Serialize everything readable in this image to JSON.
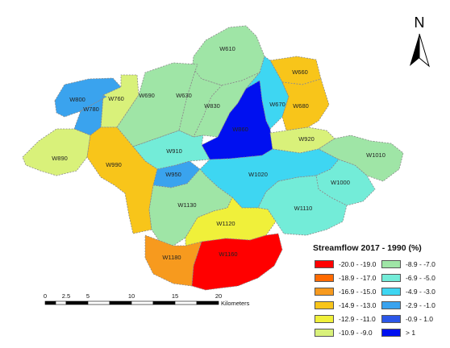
{
  "colors": {
    "c1": "#ff0000",
    "c2": "#ff6a00",
    "c3": "#f79a1e",
    "c4": "#f8c51a",
    "c5": "#f0f03a",
    "c6": "#d9f17a",
    "c7": "#9fe5a6",
    "c8": "#73ecd8",
    "c9": "#3ed6f2",
    "c10": "#3aa3ee",
    "c11": "#2b56e8",
    "c12": "#0010f0"
  },
  "watersheds": [
    {
      "label": "W610",
      "class": 7
    },
    {
      "label": "W660",
      "class": 4
    },
    {
      "label": "W800",
      "class": 10
    },
    {
      "label": "W760",
      "class": 6
    },
    {
      "label": "W690",
      "class": 7
    },
    {
      "label": "W630",
      "class": 7
    },
    {
      "label": "W780",
      "class": 10
    },
    {
      "label": "W830",
      "class": 7
    },
    {
      "label": "W670",
      "class": 9
    },
    {
      "label": "W680",
      "class": 4
    },
    {
      "label": "W860",
      "class": 12
    },
    {
      "label": "W920",
      "class": 6
    },
    {
      "label": "W890",
      "class": 6
    },
    {
      "label": "W910",
      "class": 8
    },
    {
      "label": "W1010",
      "class": 7
    },
    {
      "label": "W990",
      "class": 4
    },
    {
      "label": "W950",
      "class": 10
    },
    {
      "label": "W1020",
      "class": 9
    },
    {
      "label": "W1000",
      "class": 8
    },
    {
      "label": "W1130",
      "class": 7
    },
    {
      "label": "W1110",
      "class": 8
    },
    {
      "label": "W1120",
      "class": 5
    },
    {
      "label": "W1180",
      "class": 3
    },
    {
      "label": "W1160",
      "class": 1
    }
  ],
  "legend": {
    "title": "Streamflow 2017 - 1990 (%)",
    "classes": [
      {
        "label": "-20.0 - -19.0",
        "color": "#ff0000"
      },
      {
        "label": "-18.9 - -17.0",
        "color": "#ff6a00"
      },
      {
        "label": "-16.9 - -15.0",
        "color": "#f79a1e"
      },
      {
        "label": "-14.9 - -13.0",
        "color": "#f8c51a"
      },
      {
        "label": "-12.9 - -11.0",
        "color": "#f0f03a"
      },
      {
        "label": "-10.9 - -9.0",
        "color": "#d9f17a"
      },
      {
        "label": "-8.9 - -7.0",
        "color": "#9fe5a6"
      },
      {
        "label": "-6.9 - -5.0",
        "color": "#73ecd8"
      },
      {
        "label": "-4.9 - -3.0",
        "color": "#3ed6f2"
      },
      {
        "label": "-2.9 - -1.0",
        "color": "#3aa3ee"
      },
      {
        "label": "-0.9 - 1.0",
        "color": "#2b56e8"
      },
      {
        "label": "> 1",
        "color": "#0010f0"
      }
    ]
  },
  "scale_bar": {
    "ticks": [
      "0",
      "2.5",
      "5",
      "10",
      "15",
      "20"
    ],
    "unit": "Kilometers"
  },
  "north_arrow": {
    "label": "N"
  }
}
